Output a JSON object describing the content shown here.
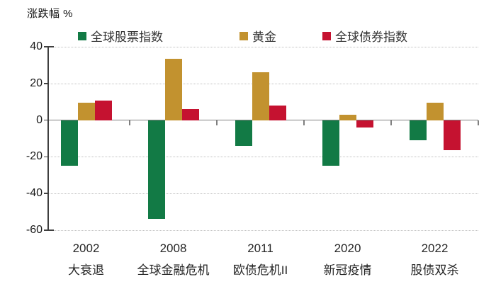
{
  "chart_data": {
    "type": "bar",
    "title": "涨跌幅 %",
    "xlabel": "",
    "ylabel": "涨跌幅 %",
    "ylim": [
      -60,
      40
    ],
    "yticks": [
      40,
      20,
      0,
      -20,
      -40,
      -60
    ],
    "legend_position": "top",
    "grid": "horizontal dotted gridlines with solid zero line",
    "categories": [
      {
        "year": "2002",
        "label": "大衰退"
      },
      {
        "year": "2008",
        "label": "全球金融危机"
      },
      {
        "year": "2011",
        "label": "欧债危机II"
      },
      {
        "year": "2020",
        "label": "新冠疫情"
      },
      {
        "year": "2022",
        "label": "股债双杀"
      }
    ],
    "series": [
      {
        "name": "全球股票指数",
        "color": "#127A45",
        "values": [
          -25,
          -54,
          -14,
          -25,
          -11
        ]
      },
      {
        "name": "黄金",
        "color": "#C2922F",
        "values": [
          9.5,
          33.5,
          26,
          3,
          9.5
        ]
      },
      {
        "name": "全球债券指数",
        "color": "#C51230",
        "values": [
          10.5,
          6,
          8,
          -4,
          -16.5
        ]
      }
    ]
  },
  "colors": {
    "background": "#FFFFFF",
    "gridline": "#BFBFBF",
    "zero_line": "#7F7F7F",
    "axis": "#3F3F3F",
    "text": "#262626"
  }
}
